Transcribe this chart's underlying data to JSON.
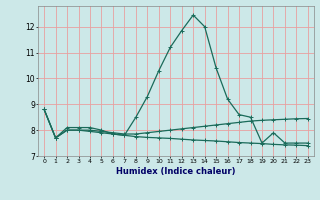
{
  "title": "",
  "xlabel": "Humidex (Indice chaleur)",
  "ylabel": "",
  "bg_color": "#cce8e8",
  "grid_color": "#e8a0a0",
  "line_color": "#1a6b5a",
  "xlim": [
    -0.5,
    23.5
  ],
  "ylim": [
    7.0,
    12.8
  ],
  "yticks": [
    7,
    8,
    9,
    10,
    11,
    12
  ],
  "xticks": [
    0,
    1,
    2,
    3,
    4,
    5,
    6,
    7,
    8,
    9,
    10,
    11,
    12,
    13,
    14,
    15,
    16,
    17,
    18,
    19,
    20,
    21,
    22,
    23
  ],
  "series": [
    {
      "x": [
        0,
        1,
        2,
        3,
        4,
        5,
        6,
        7,
        8,
        9,
        10,
        11,
        12,
        13,
        14,
        15,
        16,
        17,
        18,
        19,
        20,
        21,
        22,
        23
      ],
      "y": [
        8.8,
        7.7,
        8.1,
        8.1,
        8.1,
        8.0,
        7.85,
        7.8,
        8.5,
        9.3,
        10.3,
        11.2,
        11.85,
        12.45,
        12.0,
        10.4,
        9.2,
        8.6,
        8.5,
        7.5,
        7.9,
        7.5,
        7.5,
        7.5
      ]
    },
    {
      "x": [
        0,
        1,
        2,
        3,
        4,
        5,
        6,
        7,
        8,
        9,
        10,
        11,
        12,
        13,
        14,
        15,
        16,
        17,
        18,
        19,
        20,
        21,
        22,
        23
      ],
      "y": [
        8.8,
        7.7,
        8.0,
        8.0,
        8.0,
        7.95,
        7.9,
        7.85,
        7.85,
        7.9,
        7.95,
        8.0,
        8.05,
        8.1,
        8.15,
        8.2,
        8.25,
        8.3,
        8.35,
        8.38,
        8.4,
        8.42,
        8.44,
        8.45
      ]
    },
    {
      "x": [
        0,
        1,
        2,
        3,
        4,
        5,
        6,
        7,
        8,
        9,
        10,
        11,
        12,
        13,
        14,
        15,
        16,
        17,
        18,
        19,
        20,
        21,
        22,
        23
      ],
      "y": [
        8.8,
        7.7,
        8.0,
        8.0,
        7.95,
        7.9,
        7.85,
        7.8,
        7.75,
        7.72,
        7.7,
        7.68,
        7.65,
        7.62,
        7.6,
        7.58,
        7.55,
        7.52,
        7.5,
        7.48,
        7.45,
        7.43,
        7.42,
        7.4
      ]
    }
  ]
}
